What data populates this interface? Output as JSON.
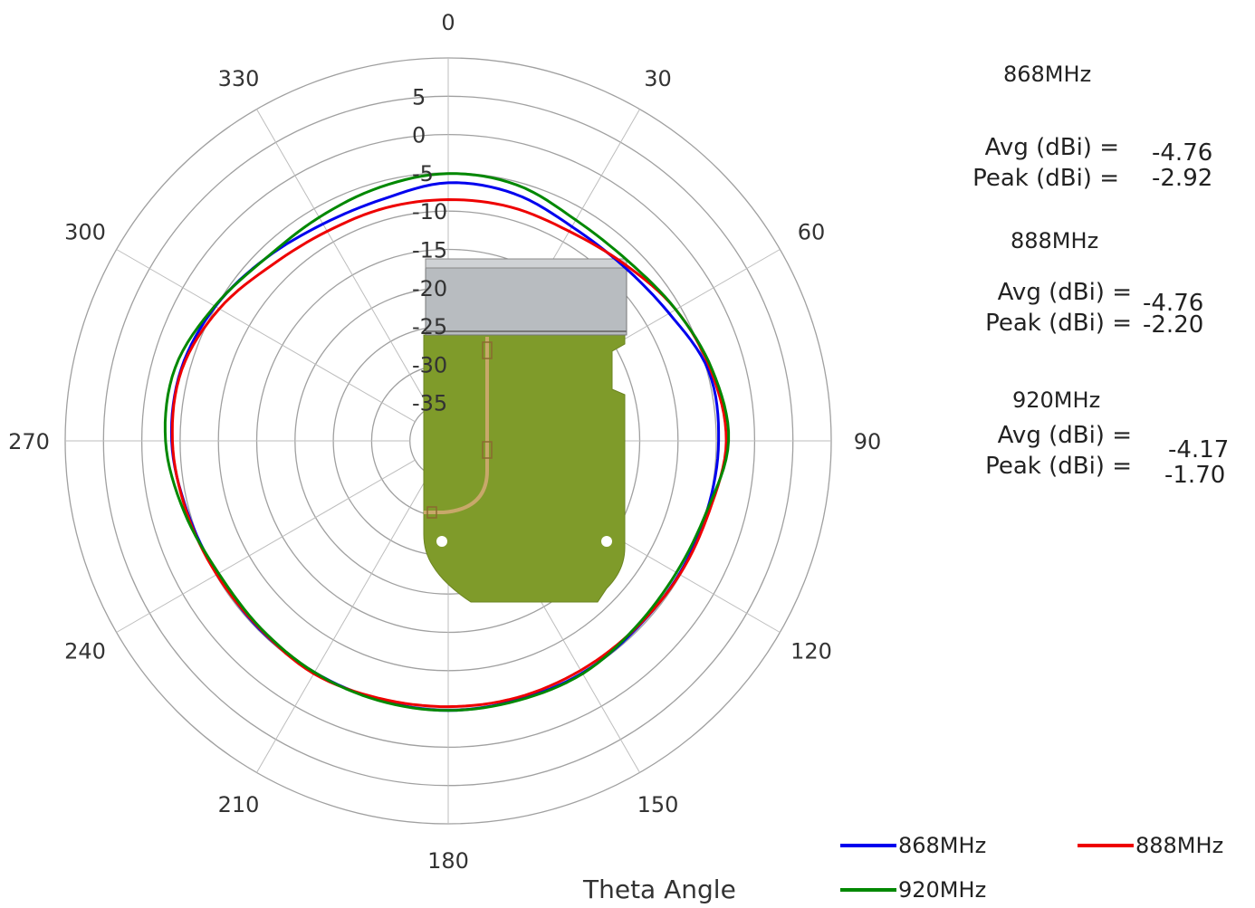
{
  "chart_data": {
    "type": "polar-line",
    "xlabel": "Theta Angle",
    "angle_ticks": [
      "0",
      "30",
      "60",
      "90",
      "120",
      "150",
      "180",
      "210",
      "240",
      "270",
      "300",
      "330"
    ],
    "angle_tick_values": [
      0,
      30,
      60,
      90,
      120,
      150,
      180,
      210,
      240,
      270,
      300,
      330
    ],
    "radial_ticks": [
      "5",
      "0",
      "-5",
      "-10",
      "-15",
      "-20",
      "-25",
      "-30",
      "-35"
    ],
    "radial_range": [
      -40,
      10
    ],
    "grid": true,
    "legend_position": "bottom-right",
    "angles_deg": [
      0,
      15,
      30,
      45,
      60,
      75,
      90,
      105,
      120,
      135,
      150,
      165,
      180,
      195,
      210,
      225,
      240,
      255,
      270,
      285,
      300,
      315,
      330,
      345
    ],
    "series": [
      {
        "name": "868MHz",
        "color": "#0000ee",
        "values": [
          -6.3,
          -6.6,
          -7.7,
          -7.7,
          -6.7,
          -4.8,
          -4.7,
          -5.0,
          -5.2,
          -5.3,
          -5.0,
          -5.0,
          -4.8,
          -5.0,
          -5.1,
          -5.2,
          -5.2,
          -4.7,
          -3.9,
          -3.9,
          -4.9,
          -6.3,
          -7.3,
          -7.3
        ]
      },
      {
        "name": "888MHz",
        "color": "#ee0000",
        "values": [
          -8.5,
          -8.4,
          -8.4,
          -7.4,
          -5.7,
          -4.5,
          -3.7,
          -4.7,
          -5.1,
          -5.4,
          -5.4,
          -5.3,
          -5.3,
          -5.2,
          -4.9,
          -5.3,
          -5.1,
          -4.6,
          -4.0,
          -4.0,
          -5.5,
          -7.5,
          -8.4,
          -8.5
        ]
      },
      {
        "name": "920MHz",
        "color": "#008800",
        "values": [
          -5.1,
          -5.4,
          -6.7,
          -6.8,
          -5.7,
          -4.3,
          -3.4,
          -5.0,
          -5.6,
          -5.5,
          -4.9,
          -4.9,
          -4.8,
          -4.9,
          -5.1,
          -5.4,
          -5.4,
          -4.3,
          -3.1,
          -3.1,
          -4.8,
          -6.3,
          -6.3,
          -5.7
        ]
      }
    ]
  },
  "stats": [
    {
      "title": "868MHz",
      "avg_label": "Avg  (dBi) =",
      "avg": "-4.76",
      "peak_label": "Peak (dBi) =",
      "peak": "-2.92"
    },
    {
      "title": "888MHz",
      "avg_label": "Avg  (dBi) =",
      "avg": "-4.76",
      "peak_label": "Peak (dBi) =",
      "peak": "-2.20"
    },
    {
      "title": "920MHz",
      "avg_label": "Avg  (dBi) =",
      "avg": "-4.17",
      "peak_label": "Peak (dBi) =",
      "peak": "-1.70"
    }
  ],
  "colors": {
    "board_green": "#7f9b2a",
    "component_gray": "#b8bcc0",
    "grid": "#999999"
  }
}
